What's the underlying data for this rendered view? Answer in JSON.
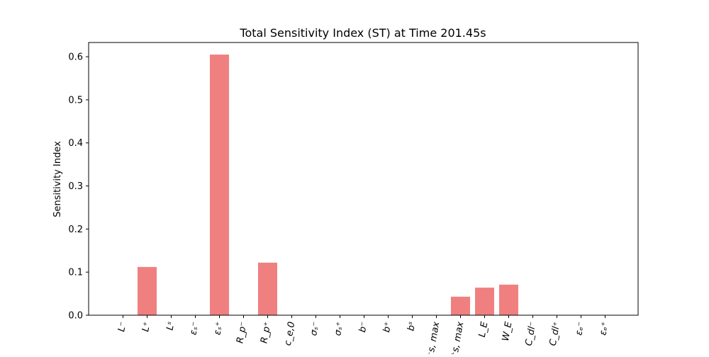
{
  "chart_data": {
    "type": "bar",
    "title": "Total Sensitivity Index (ST) at Time 201.45s",
    "xlabel": "",
    "ylabel": "Sensitivity Index",
    "ylim": [
      0,
      0.633
    ],
    "yticks": [
      "0.0",
      "0.1",
      "0.2",
      "0.3",
      "0.4",
      "0.5",
      "0.6"
    ],
    "bar_color": "#f08080",
    "grid": false,
    "categories": [
      "L⁻",
      "L⁺",
      "Lˢ",
      "εₛ⁻",
      "εₛ⁺",
      "R_p⁻",
      "R_p⁺",
      "c_e,0",
      "σₛ⁻",
      "σₛ⁺",
      "b⁻",
      "b⁺",
      "bˢ",
      "c⁻s, max",
      "c⁺s, max",
      "L_E",
      "W_E",
      "C_dl⁻",
      "C_dl⁺",
      "εₑ⁻",
      "εₑ⁺"
    ],
    "values": [
      0.0,
      0.112,
      0.0,
      0.0,
      0.605,
      0.0,
      0.122,
      0.0,
      0.0,
      0.0,
      0.0,
      0.0,
      0.0,
      0.0,
      0.043,
      0.064,
      0.071,
      0.0,
      0.0,
      0.0,
      0.0
    ]
  }
}
